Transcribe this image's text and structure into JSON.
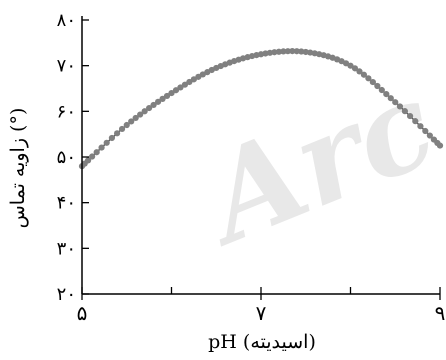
{
  "chart_data": {
    "type": "line",
    "title": "",
    "xlabel": "pH (اسیدیته)",
    "ylabel": "زاویه تماس (°)",
    "xlim": [
      5,
      9
    ],
    "ylim": [
      20,
      80
    ],
    "x_ticks": [
      5,
      7,
      9
    ],
    "x_tick_labels": [
      "۵",
      "۷",
      "۹"
    ],
    "y_ticks": [
      20,
      30,
      40,
      50,
      60,
      70,
      80
    ],
    "y_tick_labels": [
      "۲۰",
      "۳۰",
      "۴۰",
      "۵۰",
      "۶۰",
      "۷۰",
      "۸۰"
    ],
    "grid": false,
    "watermark": "Arc",
    "series": [
      {
        "color": "#808080",
        "marker": "circle",
        "x": [
          5.0,
          5.5,
          6.0,
          6.5,
          7.0,
          7.5,
          8.0,
          8.5,
          9.0
        ],
        "y": [
          48.0,
          57.0,
          64.0,
          69.5,
          72.5,
          73.0,
          70.0,
          62.0,
          52.5
        ]
      }
    ]
  }
}
